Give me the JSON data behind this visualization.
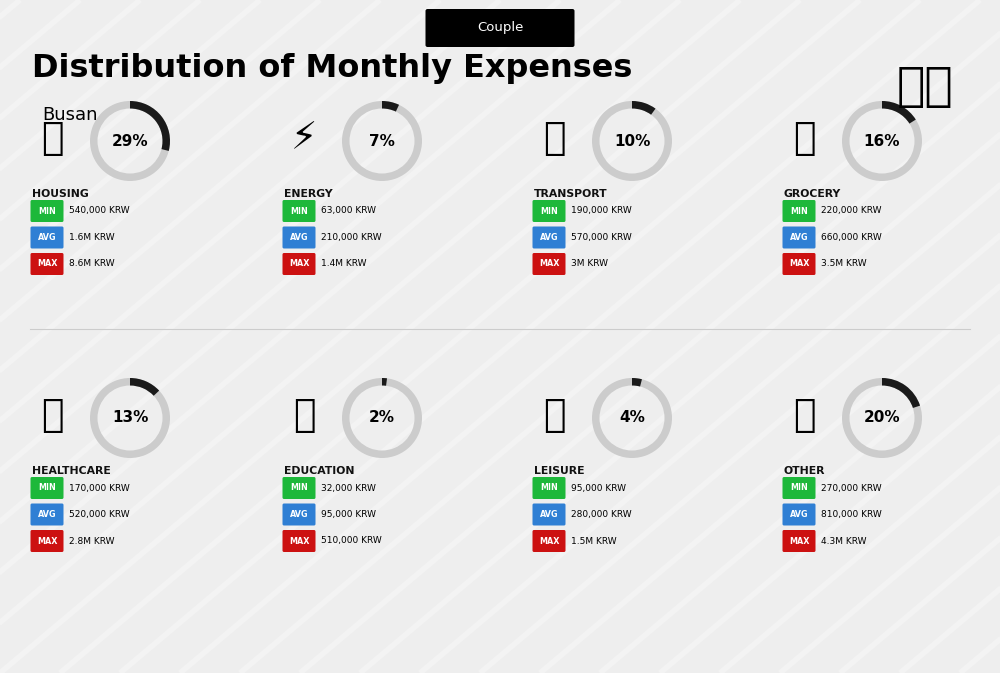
{
  "title": "Distribution of Monthly Expenses",
  "subtitle": "Busan",
  "tag": "Couple",
  "bg_color": "#eeeeee",
  "categories": [
    {
      "name": "HOUSING",
      "pct": 29,
      "min": "540,000 KRW",
      "avg": "1.6M KRW",
      "max": "8.6M KRW",
      "col": 0,
      "row": 0
    },
    {
      "name": "ENERGY",
      "pct": 7,
      "min": "63,000 KRW",
      "avg": "210,000 KRW",
      "max": "1.4M KRW",
      "col": 1,
      "row": 0
    },
    {
      "name": "TRANSPORT",
      "pct": 10,
      "min": "190,000 KRW",
      "avg": "570,000 KRW",
      "max": "3M KRW",
      "col": 2,
      "row": 0
    },
    {
      "name": "GROCERY",
      "pct": 16,
      "min": "220,000 KRW",
      "avg": "660,000 KRW",
      "max": "3.5M KRW",
      "col": 3,
      "row": 0
    },
    {
      "name": "HEALTHCARE",
      "pct": 13,
      "min": "170,000 KRW",
      "avg": "520,000 KRW",
      "max": "2.8M KRW",
      "col": 0,
      "row": 1
    },
    {
      "name": "EDUCATION",
      "pct": 2,
      "min": "32,000 KRW",
      "avg": "95,000 KRW",
      "max": "510,000 KRW",
      "col": 1,
      "row": 1
    },
    {
      "name": "LEISURE",
      "pct": 4,
      "min": "95,000 KRW",
      "avg": "280,000 KRW",
      "max": "1.5M KRW",
      "col": 2,
      "row": 1
    },
    {
      "name": "OTHER",
      "pct": 20,
      "min": "270,000 KRW",
      "avg": "810,000 KRW",
      "max": "4.3M KRW",
      "col": 3,
      "row": 1
    }
  ],
  "min_color": "#1db83a",
  "avg_color": "#2f7fd4",
  "max_color": "#cc1111",
  "donut_filled": "#1a1a1a",
  "donut_empty": "#cccccc",
  "cat_label_color": "#111111"
}
